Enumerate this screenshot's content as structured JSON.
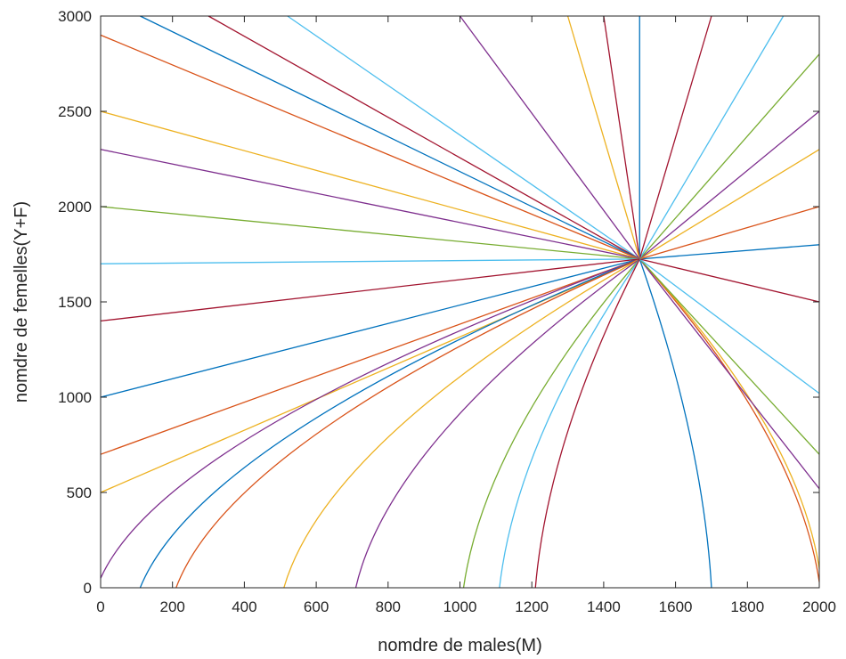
{
  "chart_data": {
    "type": "line",
    "title": "",
    "xlabel": "nomdre de males(M)",
    "ylabel": "nomdre de femelles(Y+F)",
    "xlim": [
      0,
      2000
    ],
    "ylim": [
      0,
      3000
    ],
    "xticks": [
      "0",
      "200",
      "400",
      "600",
      "800",
      "1000",
      "1200",
      "1400",
      "1600",
      "1800",
      "2000"
    ],
    "yticks": [
      "0",
      "500",
      "1000",
      "1500",
      "2000",
      "2500",
      "3000"
    ],
    "grid": false,
    "legend": "none",
    "equilibrium": {
      "x": 1500,
      "y": 1725
    },
    "series": [
      {
        "color": "#0072BD",
        "start": [
          0,
          1000
        ]
      },
      {
        "color": "#D95319",
        "start": [
          0,
          700
        ]
      },
      {
        "color": "#EDB120",
        "start": [
          0,
          500
        ]
      },
      {
        "color": "#7E2F8E",
        "start": [
          0,
          50
        ]
      },
      {
        "color": "#0072BD",
        "start": [
          110,
          0
        ]
      },
      {
        "color": "#D95319",
        "start": [
          210,
          0
        ]
      },
      {
        "color": "#EDB120",
        "start": [
          510,
          0
        ]
      },
      {
        "color": "#7E2F8E",
        "start": [
          710,
          0
        ]
      },
      {
        "color": "#77AC30",
        "start": [
          1010,
          0
        ]
      },
      {
        "color": "#4DBEEE",
        "start": [
          1110,
          0
        ]
      },
      {
        "color": "#A2142F",
        "start": [
          1210,
          0
        ]
      },
      {
        "color": "#0072BD",
        "start": [
          1700,
          0
        ]
      },
      {
        "color": "#D95319",
        "start": [
          2000,
          30
        ]
      },
      {
        "color": "#EDB120",
        "start": [
          2000,
          100
        ]
      },
      {
        "color": "#7E2F8E",
        "start": [
          2000,
          520
        ]
      },
      {
        "color": "#77AC30",
        "start": [
          2000,
          700
        ]
      },
      {
        "color": "#4DBEEE",
        "start": [
          2000,
          1020
        ]
      },
      {
        "color": "#A2142F",
        "start": [
          2000,
          1500
        ]
      },
      {
        "color": "#0072BD",
        "start": [
          2000,
          1800
        ]
      },
      {
        "color": "#D95319",
        "start": [
          2000,
          2000
        ]
      },
      {
        "color": "#EDB120",
        "start": [
          2000,
          2300
        ]
      },
      {
        "color": "#7E2F8E",
        "start": [
          2000,
          2500
        ]
      },
      {
        "color": "#77AC30",
        "start": [
          2000,
          2800
        ]
      },
      {
        "color": "#4DBEEE",
        "start": [
          1900,
          3000
        ]
      },
      {
        "color": "#A2142F",
        "start": [
          1700,
          3000
        ]
      },
      {
        "color": "#0072BD",
        "start": [
          1500,
          3000
        ]
      },
      {
        "color": "#A2142F",
        "start": [
          1400,
          3000
        ]
      },
      {
        "color": "#EDB120",
        "start": [
          1300,
          3000
        ]
      },
      {
        "color": "#7E2F8E",
        "start": [
          1000,
          3000
        ]
      },
      {
        "color": "#4DBEEE",
        "start": [
          520,
          3000
        ]
      },
      {
        "color": "#A2142F",
        "start": [
          300,
          3000
        ]
      },
      {
        "color": "#0072BD",
        "start": [
          110,
          3000
        ]
      },
      {
        "color": "#D95319",
        "start": [
          0,
          2900
        ]
      },
      {
        "color": "#EDB120",
        "start": [
          0,
          2500
        ]
      },
      {
        "color": "#7E2F8E",
        "start": [
          0,
          2300
        ]
      },
      {
        "color": "#77AC30",
        "start": [
          0,
          2000
        ]
      },
      {
        "color": "#4DBEEE",
        "start": [
          0,
          1700
        ]
      },
      {
        "color": "#A2142F",
        "start": [
          0,
          1400
        ]
      }
    ]
  }
}
